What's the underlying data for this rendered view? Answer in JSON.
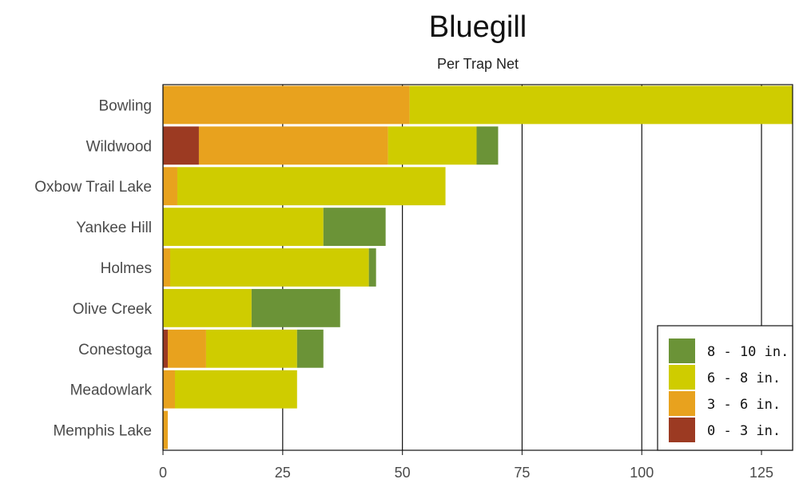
{
  "chart_data": {
    "type": "bar",
    "orientation": "horizontal",
    "stacked": true,
    "title": "Bluegill",
    "subtitle": "Per Trap Net",
    "categories": [
      "Bowling",
      "Wildwood",
      "Oxbow Trail Lake",
      "Yankee Hill",
      "Holmes",
      "Olive Creek",
      "Conestoga",
      "Meadowlark",
      "Memphis Lake"
    ],
    "series": [
      {
        "name": "0 - 3  in.",
        "color": "#9c3a22",
        "values": [
          0,
          7.5,
          0,
          0,
          0,
          0,
          1,
          0,
          0
        ]
      },
      {
        "name": "3 - 6  in.",
        "color": "#e8a21e",
        "values": [
          51.5,
          39.5,
          3,
          0,
          1.5,
          0,
          8,
          2.5,
          1
        ]
      },
      {
        "name": "6 - 8  in.",
        "color": "#cfcc00",
        "values": [
          80,
          18.5,
          56,
          33.5,
          41.5,
          18.5,
          19,
          25.5,
          0
        ]
      },
      {
        "name": "8 - 10  in.",
        "color": "#6b9337",
        "values": [
          0,
          4.5,
          0,
          13,
          1.5,
          18.5,
          5.5,
          0,
          0
        ]
      }
    ],
    "xlim": [
      0,
      131.5
    ],
    "xticks": [
      0,
      25,
      50,
      75,
      100,
      125
    ],
    "xlabel": "",
    "ylabel": "",
    "grid": "vertical major lines",
    "legend": "bottom-right",
    "legend_order": [
      "8 - 10  in.",
      "6 - 8  in.",
      "3 - 6  in.",
      "0 - 3  in."
    ]
  }
}
